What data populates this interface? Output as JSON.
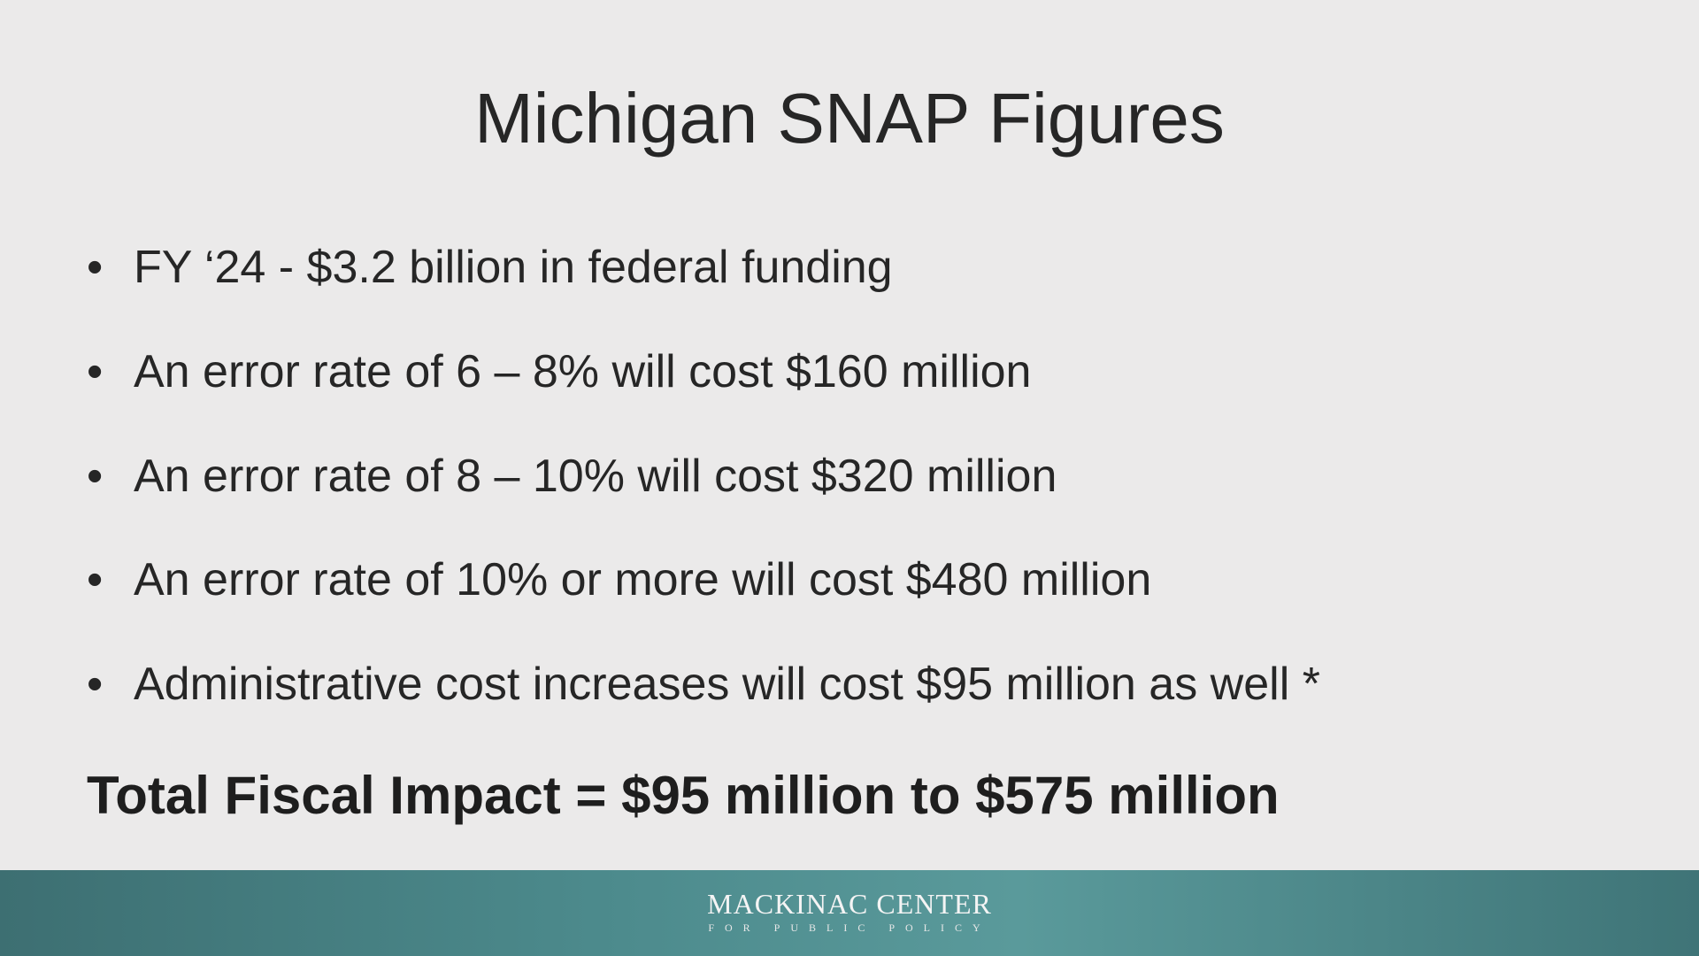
{
  "header": {
    "title": "Michigan SNAP Figures"
  },
  "bullets": [
    "FY ‘24 - $3.2 billion in federal funding",
    "An error rate of 6 – 8% will cost $160 million",
    "An error rate of 8 – 10% will cost $320 million",
    "An error rate of 10% or more will cost $480 million",
    "Administrative cost increases will cost $95 million as well *"
  ],
  "total": "Total Fiscal Impact = $95 million to $575 million",
  "footer": {
    "logo_name": "MACKINAC CENTER",
    "logo_subtitle": "FOR PUBLIC POLICY"
  }
}
